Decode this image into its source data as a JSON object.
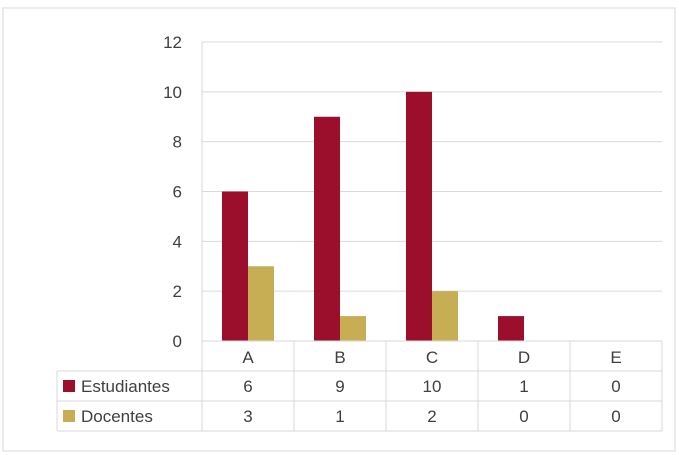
{
  "chart_data": {
    "type": "bar",
    "categories": [
      "A",
      "B",
      "C",
      "D",
      "E"
    ],
    "series": [
      {
        "name": "Estudiantes",
        "values": [
          6,
          9,
          10,
          1,
          0
        ],
        "color": "#9B0F2D"
      },
      {
        "name": "Docentes",
        "values": [
          3,
          1,
          2,
          0,
          0
        ],
        "color": "#C7AE54"
      }
    ],
    "yticks": [
      "0",
      "2",
      "4",
      "6",
      "8",
      "10",
      "12"
    ],
    "ylim": [
      0,
      12
    ],
    "grid": true,
    "legend": "data-table-below",
    "table_values": [
      [
        "6",
        "9",
        "10",
        "1",
        "0"
      ],
      [
        "3",
        "1",
        "2",
        "0",
        "0"
      ]
    ]
  }
}
